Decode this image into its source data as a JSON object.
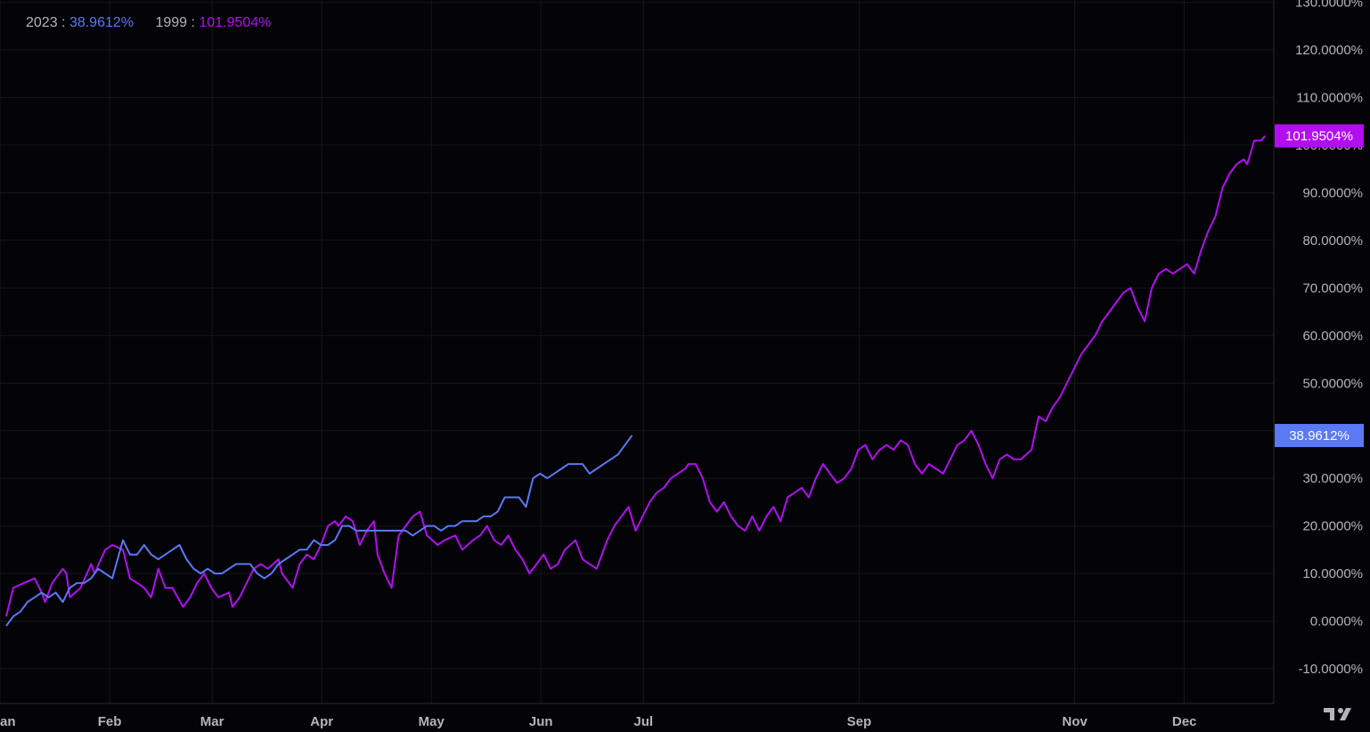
{
  "legend": [
    {
      "label": "2023",
      "value": "38.9612%",
      "color": "#5b78f5"
    },
    {
      "label": "1999",
      "value": "101.9504%",
      "color": "#b30df2"
    }
  ],
  "axis_colors": {
    "background": "#040307",
    "grid": "#17161c",
    "tick_text": "#b2b5be"
  },
  "logo": {
    "name": "tradingview-logo",
    "color": "#b2b5be"
  },
  "chart_data": {
    "type": "line",
    "x_axis": {
      "unit": "day of year",
      "range": [
        1,
        365
      ],
      "tick_labels": [
        "an",
        "Feb",
        "Mar",
        "Apr",
        "May",
        "Jun",
        "Jul",
        "Sep",
        "Nov",
        "Dec"
      ],
      "tick_days": [
        1,
        32,
        61,
        92,
        123,
        154,
        183,
        244,
        305,
        336
      ]
    },
    "y_axis": {
      "unit": "%",
      "range": [
        -17,
        130
      ],
      "ticks": [
        -10,
        0,
        10,
        20,
        30,
        40,
        50,
        60,
        70,
        80,
        90,
        100,
        110,
        120,
        130
      ],
      "tick_labels": [
        "-10.0000%",
        "0.0000%",
        "10.0000%",
        "20.0000%",
        "30.0000%",
        "40.0000%",
        "50.0000%",
        "60.0000%",
        "70.0000%",
        "80.0000%",
        "90.0000%",
        "100.0000%",
        "110.0000%",
        "120.0000%",
        "130.0000%"
      ]
    },
    "grid": true,
    "series": [
      {
        "name": "1999",
        "color": "#b30df2",
        "last_value_label": "101.9504%",
        "points": [
          [
            1,
            1
          ],
          [
            3,
            7
          ],
          [
            6,
            8
          ],
          [
            9,
            9
          ],
          [
            11,
            6
          ],
          [
            12,
            4
          ],
          [
            14,
            8
          ],
          [
            17,
            11
          ],
          [
            18,
            10
          ],
          [
            19,
            5
          ],
          [
            22,
            7
          ],
          [
            25,
            12
          ],
          [
            26,
            10
          ],
          [
            29,
            15
          ],
          [
            31,
            16
          ],
          [
            34,
            15
          ],
          [
            36,
            9
          ],
          [
            38,
            8
          ],
          [
            40,
            7
          ],
          [
            42,
            5
          ],
          [
            44,
            11
          ],
          [
            46,
            7
          ],
          [
            48,
            7
          ],
          [
            51,
            3
          ],
          [
            53,
            5
          ],
          [
            55,
            8
          ],
          [
            57,
            10
          ],
          [
            59,
            7
          ],
          [
            61,
            5
          ],
          [
            64,
            6
          ],
          [
            65,
            3
          ],
          [
            67,
            5
          ],
          [
            69,
            8
          ],
          [
            71,
            11
          ],
          [
            73,
            12
          ],
          [
            75,
            11
          ],
          [
            78,
            13
          ],
          [
            79,
            10
          ],
          [
            82,
            7
          ],
          [
            84,
            12
          ],
          [
            86,
            14
          ],
          [
            88,
            13
          ],
          [
            90,
            16
          ],
          [
            92,
            20
          ],
          [
            94,
            21
          ],
          [
            95,
            20
          ],
          [
            97,
            22
          ],
          [
            99,
            21
          ],
          [
            101,
            16
          ],
          [
            103,
            19
          ],
          [
            105,
            21
          ],
          [
            106,
            14
          ],
          [
            108,
            10
          ],
          [
            110,
            7
          ],
          [
            112,
            18
          ],
          [
            114,
            20
          ],
          [
            116,
            22
          ],
          [
            118,
            23
          ],
          [
            120,
            18
          ],
          [
            123,
            16
          ],
          [
            125,
            17
          ],
          [
            128,
            18
          ],
          [
            130,
            15
          ],
          [
            133,
            17
          ],
          [
            135,
            18
          ],
          [
            137,
            20
          ],
          [
            139,
            17
          ],
          [
            141,
            16
          ],
          [
            143,
            18
          ],
          [
            145,
            15
          ],
          [
            147,
            13
          ],
          [
            149,
            10
          ],
          [
            151,
            12
          ],
          [
            153,
            14
          ],
          [
            155,
            11
          ],
          [
            157,
            12
          ],
          [
            159,
            15
          ],
          [
            162,
            17
          ],
          [
            164,
            13
          ],
          [
            166,
            12
          ],
          [
            168,
            11
          ],
          [
            171,
            17
          ],
          [
            173,
            20
          ],
          [
            175,
            22
          ],
          [
            177,
            24
          ],
          [
            179,
            19
          ],
          [
            181,
            22
          ],
          [
            183,
            25
          ],
          [
            185,
            27
          ],
          [
            187,
            28
          ],
          [
            189,
            30
          ],
          [
            191,
            31
          ],
          [
            193,
            32
          ],
          [
            194,
            33
          ],
          [
            196,
            33
          ],
          [
            198,
            30
          ],
          [
            200,
            25
          ],
          [
            202,
            23
          ],
          [
            204,
            25
          ],
          [
            206,
            22
          ],
          [
            208,
            20
          ],
          [
            210,
            19
          ],
          [
            212,
            22
          ],
          [
            214,
            19
          ],
          [
            216,
            22
          ],
          [
            218,
            24
          ],
          [
            220,
            21
          ],
          [
            222,
            26
          ],
          [
            224,
            27
          ],
          [
            226,
            28
          ],
          [
            228,
            26
          ],
          [
            230,
            30
          ],
          [
            232,
            33
          ],
          [
            234,
            31
          ],
          [
            236,
            29
          ],
          [
            238,
            30
          ],
          [
            240,
            32
          ],
          [
            242,
            36
          ],
          [
            244,
            37
          ],
          [
            246,
            34
          ],
          [
            248,
            36
          ],
          [
            250,
            37
          ],
          [
            252,
            36
          ],
          [
            254,
            38
          ],
          [
            256,
            37
          ],
          [
            258,
            33
          ],
          [
            260,
            31
          ],
          [
            262,
            33
          ],
          [
            264,
            32
          ],
          [
            266,
            31
          ],
          [
            268,
            34
          ],
          [
            270,
            37
          ],
          [
            272,
            38
          ],
          [
            274,
            40
          ],
          [
            276,
            37
          ],
          [
            278,
            33
          ],
          [
            280,
            30
          ],
          [
            282,
            34
          ],
          [
            284,
            35
          ],
          [
            286,
            34
          ],
          [
            288,
            34
          ],
          [
            291,
            36
          ],
          [
            293,
            43
          ],
          [
            295,
            42
          ],
          [
            297,
            45
          ],
          [
            299,
            47
          ],
          [
            301,
            50
          ],
          [
            303,
            53
          ],
          [
            305,
            56
          ],
          [
            307,
            58
          ],
          [
            309,
            60
          ],
          [
            311,
            63
          ],
          [
            313,
            65
          ],
          [
            315,
            67
          ],
          [
            317,
            69
          ],
          [
            319,
            70
          ],
          [
            321,
            66
          ],
          [
            323,
            63
          ],
          [
            325,
            70
          ],
          [
            327,
            73
          ],
          [
            329,
            74
          ],
          [
            331,
            73
          ],
          [
            333,
            74
          ],
          [
            335,
            75
          ],
          [
            337,
            73
          ],
          [
            339,
            78
          ],
          [
            341,
            82
          ],
          [
            343,
            85
          ],
          [
            345,
            91
          ],
          [
            347,
            94
          ],
          [
            349,
            96
          ],
          [
            351,
            97
          ],
          [
            352,
            96
          ],
          [
            354,
            101
          ],
          [
            356,
            101
          ],
          [
            357,
            101.95
          ]
        ]
      },
      {
        "name": "2023",
        "color": "#5b78f5",
        "last_value_label": "38.9612%",
        "points": [
          [
            1,
            -1
          ],
          [
            3,
            1
          ],
          [
            5,
            2
          ],
          [
            7,
            4
          ],
          [
            9,
            5
          ],
          [
            11,
            6
          ],
          [
            13,
            5
          ],
          [
            15,
            6
          ],
          [
            17,
            4
          ],
          [
            19,
            7
          ],
          [
            21,
            8
          ],
          [
            23,
            8
          ],
          [
            25,
            9
          ],
          [
            27,
            11
          ],
          [
            29,
            10
          ],
          [
            31,
            9
          ],
          [
            34,
            17
          ],
          [
            36,
            14
          ],
          [
            38,
            14
          ],
          [
            40,
            16
          ],
          [
            42,
            14
          ],
          [
            44,
            13
          ],
          [
            46,
            14
          ],
          [
            48,
            15
          ],
          [
            50,
            16
          ],
          [
            52,
            13
          ],
          [
            54,
            11
          ],
          [
            56,
            10
          ],
          [
            58,
            11
          ],
          [
            60,
            10
          ],
          [
            62,
            10
          ],
          [
            64,
            11
          ],
          [
            66,
            12
          ],
          [
            68,
            12
          ],
          [
            70,
            12
          ],
          [
            72,
            10
          ],
          [
            74,
            9
          ],
          [
            76,
            10
          ],
          [
            78,
            12
          ],
          [
            80,
            13
          ],
          [
            82,
            14
          ],
          [
            84,
            15
          ],
          [
            86,
            15
          ],
          [
            88,
            17
          ],
          [
            90,
            16
          ],
          [
            92,
            16
          ],
          [
            94,
            17
          ],
          [
            96,
            20
          ],
          [
            98,
            20
          ],
          [
            100,
            19
          ],
          [
            102,
            19
          ],
          [
            104,
            19
          ],
          [
            106,
            19
          ],
          [
            108,
            19
          ],
          [
            110,
            19
          ],
          [
            112,
            19
          ],
          [
            114,
            19
          ],
          [
            116,
            18
          ],
          [
            118,
            19
          ],
          [
            120,
            20
          ],
          [
            122,
            20
          ],
          [
            124,
            19
          ],
          [
            126,
            20
          ],
          [
            128,
            20
          ],
          [
            130,
            21
          ],
          [
            132,
            21
          ],
          [
            134,
            21
          ],
          [
            136,
            22
          ],
          [
            138,
            22
          ],
          [
            140,
            23
          ],
          [
            142,
            26
          ],
          [
            144,
            26
          ],
          [
            146,
            26
          ],
          [
            148,
            24
          ],
          [
            150,
            30
          ],
          [
            152,
            31
          ],
          [
            154,
            30
          ],
          [
            156,
            31
          ],
          [
            158,
            32
          ],
          [
            160,
            33
          ],
          [
            162,
            33
          ],
          [
            164,
            33
          ],
          [
            166,
            31
          ],
          [
            168,
            32
          ],
          [
            170,
            33
          ],
          [
            172,
            34
          ],
          [
            174,
            35
          ],
          [
            176,
            37
          ],
          [
            178,
            39
          ]
        ]
      }
    ]
  }
}
